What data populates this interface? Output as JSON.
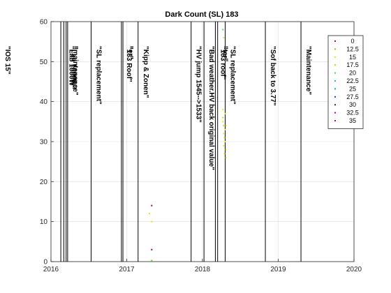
{
  "chart_data": {
    "type": "scatter",
    "title": "Dark Count (SL) 183",
    "xlabel": "",
    "ylabel": "",
    "xlim": [
      2016,
      2020
    ],
    "ylim": [
      0,
      60
    ],
    "xticks": [
      2016,
      2017,
      2018,
      2019,
      2020
    ],
    "yticks": [
      0,
      10,
      20,
      30,
      40,
      50,
      60
    ],
    "grid": true,
    "legend": {
      "position": "top-right",
      "entries": [
        {
          "name": "0",
          "color": "#c00000"
        },
        {
          "name": "12.5",
          "color": "#e0a000"
        },
        {
          "name": "15",
          "color": "#e6e600"
        },
        {
          "name": "17.5",
          "color": "#b0e000"
        },
        {
          "name": "20",
          "color": "#40e040"
        },
        {
          "name": "22.5",
          "color": "#00d0a0"
        },
        {
          "name": "25",
          "color": "#00b0e0"
        },
        {
          "name": "27.5",
          "color": "#0050e0"
        },
        {
          "name": "30",
          "color": "#202080"
        },
        {
          "name": "32.5",
          "color": "#a000c0"
        },
        {
          "name": "35",
          "color": "#d00060"
        }
      ]
    },
    "events": [
      {
        "x": 2016.13,
        "label": "\"IOS 15\""
      },
      {
        "x": 2016.17,
        "label": "\"Lab 1000W\""
      },
      {
        "x": 2016.2,
        "label": "\"Lab 1000W\""
      },
      {
        "x": 2016.22,
        "label": "\"maintenance\""
      },
      {
        "x": 2016.53,
        "label": "\"SL replacement\""
      },
      {
        "x": 2016.93,
        "label": "\"183 Roof\""
      },
      {
        "x": 2016.95,
        "label": "\"er\""
      },
      {
        "x": 2017.15,
        "label": "\"Kipp & Zonen\""
      },
      {
        "x": 2017.85,
        "label": "\"HV jump 1545-->1533\""
      },
      {
        "x": 2018.02,
        "label": "\"Bad weather.HV back original value\""
      },
      {
        "x": 2018.17,
        "label": "\"183 roof\""
      },
      {
        "x": 2018.2,
        "label": "\"ter\""
      },
      {
        "x": 2018.3,
        "label": "\"SL replacement\""
      },
      {
        "x": 2018.83,
        "label": "\"Sof back to 3.77\""
      },
      {
        "x": 2019.3,
        "label": "\"Maintenance\""
      }
    ],
    "series": [
      {
        "name": "0",
        "color": "#c00000",
        "points": [
          [
            2017.33,
            3
          ],
          [
            2017.33,
            14
          ]
        ]
      },
      {
        "name": "15",
        "color": "#e6e600",
        "points": [
          [
            2017.3,
            12
          ],
          [
            2017.33,
            10
          ],
          [
            2017.33,
            0.3
          ],
          [
            2018.27,
            38
          ],
          [
            2018.27,
            35
          ],
          [
            2018.28,
            32
          ],
          [
            2018.28,
            29
          ],
          [
            2018.29,
            31
          ],
          [
            2018.29,
            27
          ],
          [
            2018.3,
            37
          ],
          [
            2018.3,
            33
          ],
          [
            2018.3,
            30
          ],
          [
            2018.31,
            34
          ],
          [
            2018.31,
            26
          ],
          [
            2018.31,
            28
          ],
          [
            2018.28,
            56
          ]
        ]
      },
      {
        "name": "17.5",
        "color": "#b0e000",
        "points": [
          [
            2018.27,
            36
          ],
          [
            2018.28,
            34
          ]
        ]
      },
      {
        "name": "20",
        "color": "#40e040",
        "points": [
          [
            2017.33,
            0.2
          ],
          [
            2018.27,
            58
          ]
        ]
      }
    ]
  }
}
